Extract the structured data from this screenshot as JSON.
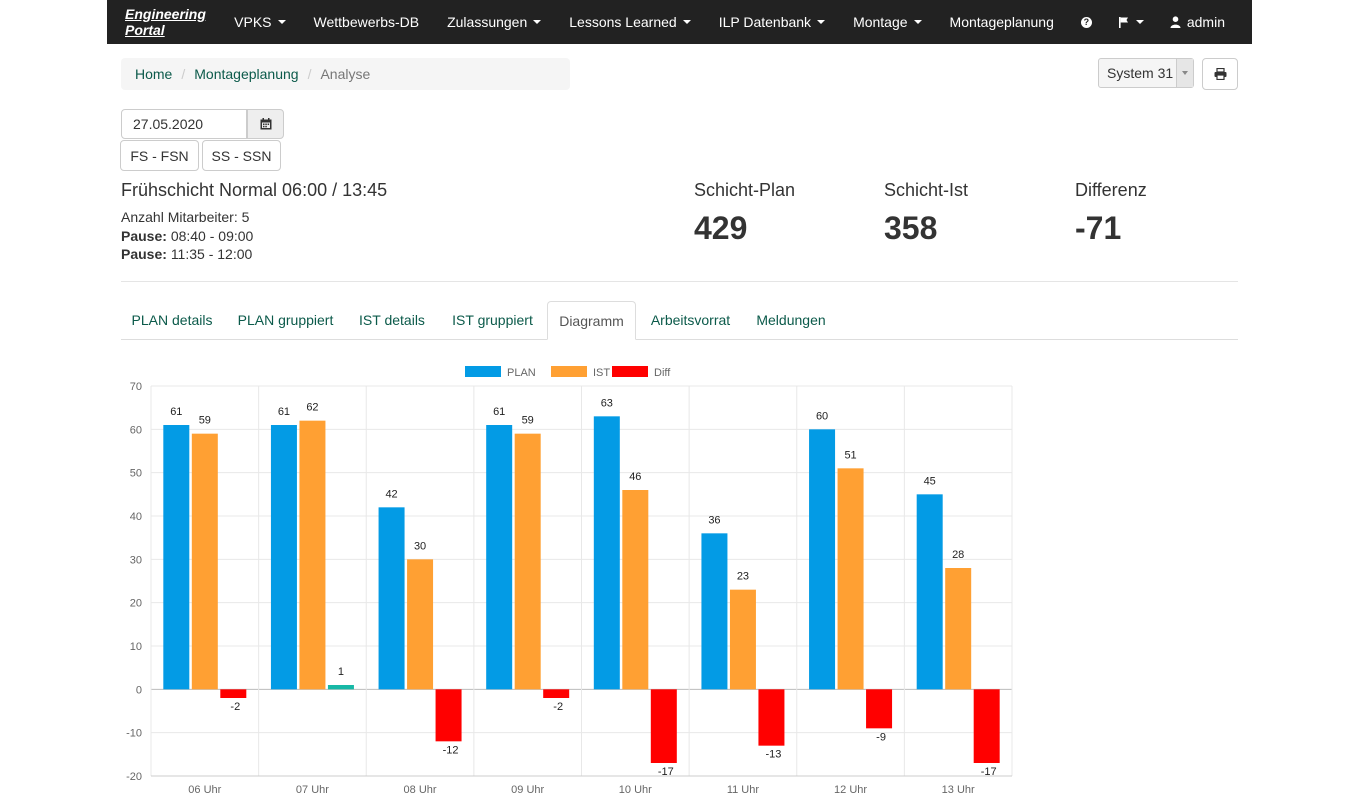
{
  "navbar": {
    "brand": "Engineering Portal",
    "items": [
      "VPKS",
      "Wettbewerbs-DB",
      "Zulassungen",
      "Lessons Learned",
      "ILP Datenbank",
      "Montage",
      "Montageplanung"
    ],
    "user": "admin"
  },
  "breadcrumb": {
    "home": "Home",
    "section": "Montageplanung",
    "current": "Analyse"
  },
  "system_select": "System 31",
  "date": "27.05.2020",
  "shift_buttons": [
    "FS - FSN",
    "SS - SSN"
  ],
  "shift": {
    "title": "Frühschicht Normal 06:00 / 13:45",
    "staff": "Anzahl Mitarbeiter: 5",
    "pause_label": "Pause:",
    "pause1": "08:40 - 09:00",
    "pause2": "11:35 - 12:00"
  },
  "stats": {
    "plan_label": "Schicht-Plan",
    "plan_value": "429",
    "ist_label": "Schicht-Ist",
    "ist_value": "358",
    "diff_label": "Differenz",
    "diff_value": "-71"
  },
  "tabs": [
    "PLAN details",
    "PLAN gruppiert",
    "IST details",
    "IST gruppiert",
    "Diagramm",
    "Arbeitsvorrat",
    "Meldungen"
  ],
  "chart_data": {
    "type": "bar",
    "categories": [
      "06 Uhr",
      "07 Uhr",
      "08 Uhr",
      "09 Uhr",
      "10 Uhr",
      "11 Uhr",
      "12 Uhr",
      "13 Uhr"
    ],
    "series": [
      {
        "name": "PLAN",
        "values": [
          61,
          61,
          42,
          61,
          63,
          36,
          60,
          45
        ],
        "color": "#039be5"
      },
      {
        "name": "IST",
        "values": [
          59,
          62,
          30,
          59,
          46,
          23,
          51,
          28
        ],
        "color": "#ffa033"
      },
      {
        "name": "Diff",
        "values": [
          -2,
          1,
          -12,
          -2,
          -17,
          -13,
          -9,
          -17
        ],
        "color": "#ff0000",
        "positive_color": "#17b8a6"
      }
    ],
    "ylim": [
      -20,
      70
    ],
    "yticks": [
      -20,
      -10,
      0,
      10,
      20,
      30,
      40,
      50,
      60,
      70
    ],
    "grid": true,
    "legend": "top"
  }
}
